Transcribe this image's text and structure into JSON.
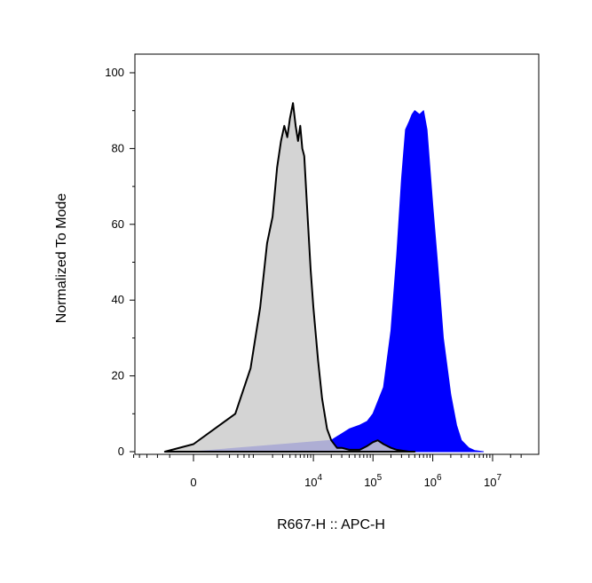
{
  "chart_data": {
    "type": "area",
    "title": "",
    "xlabel": "R667-H :: APC-H",
    "ylabel": "Normalized To Mode",
    "ylim": [
      0,
      100
    ],
    "y_ticks": [
      0,
      20,
      40,
      60,
      80,
      100
    ],
    "x_scale": "biexponential",
    "x_ticks": [
      {
        "value": 0,
        "label": "0"
      },
      {
        "value": 10000,
        "label": "10",
        "exp": "4"
      },
      {
        "value": 100000,
        "label": "10",
        "exp": "5"
      },
      {
        "value": 1000000,
        "label": "10",
        "exp": "6"
      },
      {
        "value": 10000000,
        "label": "10",
        "exp": "7"
      }
    ],
    "legend": "none",
    "grid": false,
    "series": [
      {
        "color": "#0000ff",
        "stroke": "#0000ff",
        "x": [
          0,
          20000,
          40000,
          60000,
          80000,
          100000,
          150000,
          200000,
          250000,
          300000,
          350000,
          400000,
          450000,
          500000,
          600000,
          700000,
          800000,
          1000000,
          1200000,
          1500000,
          2000000,
          2500000,
          3000000,
          4000000,
          5000000,
          7000000
        ],
        "y": [
          0,
          3,
          6,
          7,
          8,
          10,
          17,
          32,
          52,
          72,
          85,
          87,
          89,
          90,
          89,
          90,
          85,
          65,
          50,
          30,
          15,
          7,
          3,
          1,
          0.3,
          0
        ]
      },
      {
        "color": "#cccccc",
        "stroke": "#000000",
        "x": [
          -200,
          0,
          400,
          800,
          1200,
          1600,
          2000,
          2400,
          2800,
          3200,
          3600,
          4000,
          4500,
          5000,
          5500,
          6000,
          6500,
          7000,
          8000,
          9000,
          10000,
          12000,
          14000,
          17000,
          20000,
          25000,
          30000,
          40000,
          60000,
          80000,
          100000,
          120000,
          150000,
          200000,
          250000,
          300000,
          400000,
          500000
        ],
        "y": [
          0,
          2,
          10,
          22,
          38,
          55,
          62,
          75,
          82,
          86,
          83,
          88,
          92,
          86,
          82,
          86,
          80,
          78,
          62,
          48,
          38,
          24,
          14,
          6,
          3,
          1,
          1,
          0.5,
          0.5,
          1.5,
          2.5,
          3,
          2,
          1,
          0.5,
          0.3,
          0,
          0
        ]
      }
    ]
  }
}
